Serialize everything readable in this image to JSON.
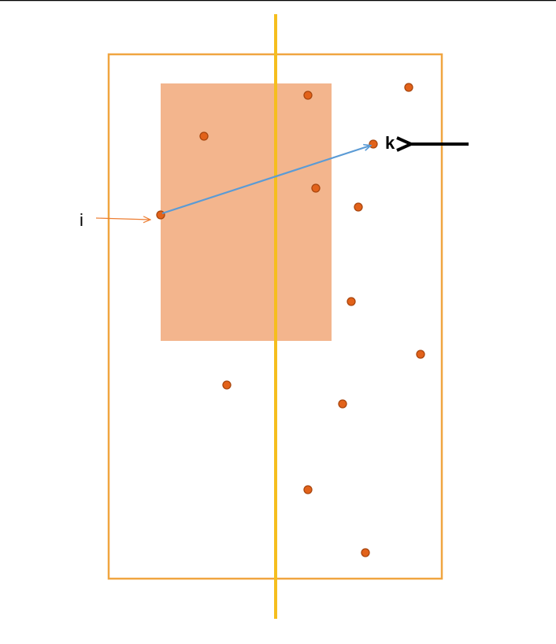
{
  "labels": {
    "point_i": "i",
    "point_k": "k"
  },
  "colors": {
    "top_rule": "#000000",
    "outer_frame": "#F0A540",
    "query_rect": "#F3B58D",
    "split_line": "#F5BE1E",
    "point_fill": "#E2621A",
    "point_stroke": "#A8460E",
    "vector": "#5B9BD5",
    "i_pointer": "#ED7D31",
    "k_pointer": "#000000"
  },
  "points_count": 13
}
